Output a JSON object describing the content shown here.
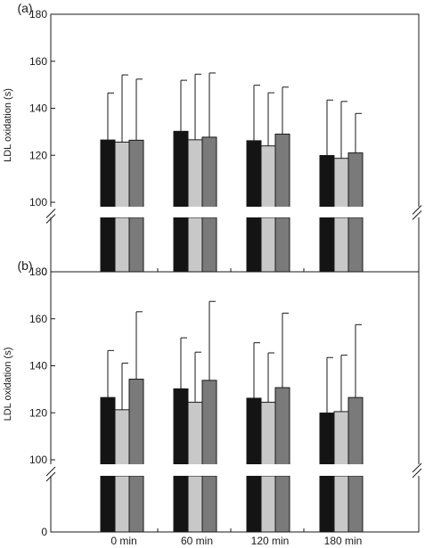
{
  "chart_data": [
    {
      "panel_label": "(a)",
      "type": "bar",
      "ylabel": "LDL oxidation (s)",
      "ylim": [
        0,
        180
      ],
      "axis_break": [
        0,
        100
      ],
      "yticks": [
        "0",
        "100",
        "120",
        "140",
        "160",
        "180"
      ],
      "categories": [
        "0 min",
        "60 min",
        "120 min",
        "180 min"
      ],
      "series": [
        {
          "color": "#141414",
          "values": [
            126.5,
            130.2,
            126.2,
            119.9
          ],
          "errors": [
            20.0,
            21.7,
            23.6,
            23.6
          ]
        },
        {
          "color": "#c8c8c8",
          "values": [
            125.6,
            126.6,
            124.0,
            118.7
          ],
          "errors": [
            28.6,
            27.9,
            22.6,
            24.2
          ]
        },
        {
          "color": "#7a7a7a",
          "values": [
            126.4,
            127.7,
            129.0,
            121.0
          ],
          "errors": [
            26.0,
            27.3,
            20.0,
            16.8
          ]
        }
      ]
    },
    {
      "panel_label": "(b)",
      "type": "bar",
      "ylabel": "LDL oxidation (s)",
      "ylim": [
        0,
        180
      ],
      "axis_break": [
        0,
        100
      ],
      "yticks": [
        "0",
        "100",
        "120",
        "140",
        "160",
        "180"
      ],
      "categories": [
        "0 min",
        "60 min",
        "120 min",
        "180 min"
      ],
      "series": [
        {
          "color": "#141414",
          "values": [
            126.5,
            130.2,
            126.2,
            119.9
          ],
          "errors": [
            20.0,
            21.7,
            23.6,
            23.6
          ]
        },
        {
          "color": "#c8c8c8",
          "values": [
            121.3,
            124.5,
            124.5,
            120.5
          ],
          "errors": [
            19.8,
            21.3,
            21.0,
            24.0
          ]
        },
        {
          "color": "#7a7a7a",
          "values": [
            134.3,
            133.8,
            130.7,
            126.5
          ],
          "errors": [
            28.7,
            33.6,
            31.7,
            31.0
          ]
        }
      ]
    }
  ]
}
